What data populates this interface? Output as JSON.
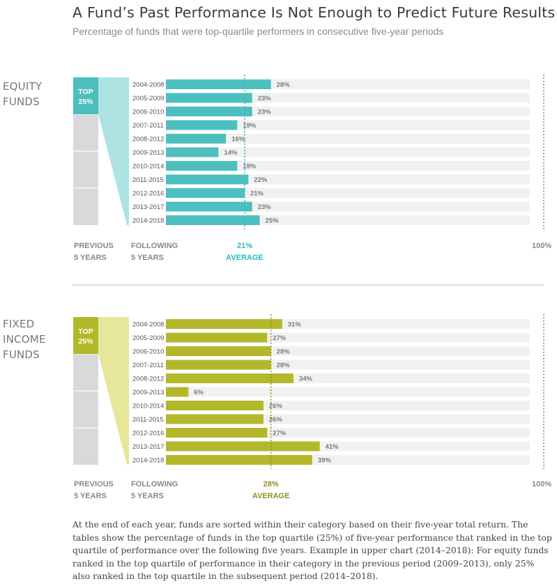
{
  "title": "A Fund’s Past Performance Is Not Enough to Predict Future Results",
  "subtitle": "Percentage of funds that were top-quartile performers in consecutive five-year periods",
  "footnote": "At the end of each year, funds are sorted within their category based on their five-year total return. The tables show the percentage of funds in the top quartile (25%) of five-year performance that ranked in the top quartile of performance over the following five years. Example in upper chart (2014–2018): For equity funds ranked in the top quartile of performance in their category in the previous period (2009–2013), only 25% also ranked in the top quartile in the subsequent period (2014–2018).",
  "colors": {
    "equity_bar": "#4dbfbf",
    "equity_funnel": "#aee3e3",
    "equity_avg": "#27b9bd",
    "fixed_bar": "#b3b82a",
    "fixed_funnel": "#e6e79b",
    "fixed_avg": "#8e9020",
    "track": "#f1f1f1",
    "column_gray": "#d9d9dc"
  },
  "chart_data": [
    {
      "type": "bar",
      "section_label": [
        "EQUITY",
        "FUNDS"
      ],
      "top_box": [
        "TOP",
        "25%"
      ],
      "categories": [
        "2004-2008",
        "2005-2009",
        "2006-2010",
        "2007-2011",
        "2008-2012",
        "2009-2013",
        "2010-2014",
        "2011-2015",
        "2012-2016",
        "2013-2017",
        "2014-2018"
      ],
      "values": [
        28,
        23,
        23,
        19,
        16,
        14,
        19,
        22,
        21,
        23,
        25
      ],
      "value_labels": [
        "28%",
        "23%",
        "23%",
        "19%",
        "16%",
        "14%",
        "19%",
        "22%",
        "21%",
        "23%",
        "25%"
      ],
      "average": 21,
      "average_value_label": "21%",
      "average_label": "AVERAGE",
      "max_label": "100%",
      "xlim": [
        0,
        100
      ],
      "left_caption": [
        "PREVIOUS",
        "5 YEARS"
      ],
      "right_caption": [
        "FOLLOWING",
        "5 YEARS"
      ]
    },
    {
      "type": "bar",
      "section_label": [
        "FIXED",
        "INCOME",
        "FUNDS"
      ],
      "top_box": [
        "TOP",
        "25%"
      ],
      "categories": [
        "2004-2008",
        "2005-2009",
        "2006-2010",
        "2007-2011",
        "2008-2012",
        "2009-2013",
        "2010-2014",
        "2011-2015",
        "2012-2016",
        "2013-2017",
        "2014-2018"
      ],
      "values": [
        31,
        27,
        28,
        28,
        34,
        6,
        26,
        26,
        27,
        41,
        39
      ],
      "value_labels": [
        "31%",
        "27%",
        "28%",
        "28%",
        "34%",
        "6%",
        "26%",
        "26%",
        "27%",
        "41%",
        "39%"
      ],
      "average": 28,
      "average_value_label": "28%",
      "average_label": "AVERAGE",
      "max_label": "100%",
      "xlim": [
        0,
        100
      ],
      "left_caption": [
        "PREVIOUS",
        "5 YEARS"
      ],
      "right_caption": [
        "FOLLOWING",
        "5 YEARS"
      ]
    }
  ]
}
